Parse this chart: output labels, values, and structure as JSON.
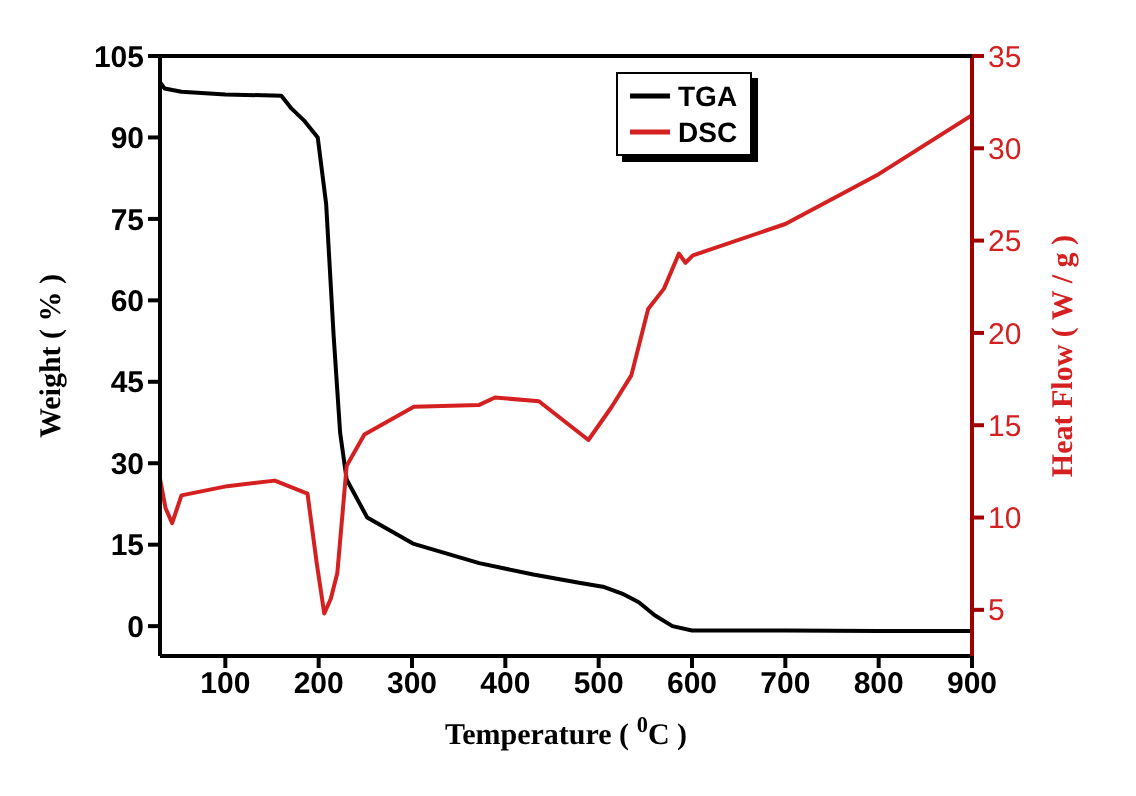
{
  "chart_data": {
    "type": "line",
    "xlabel": "Temperature ( $^{0}$C )",
    "ylabel": "Weight ( % )",
    "y2label": "Heat Flow ( W / g )",
    "xlim": [
      30,
      900
    ],
    "xticks": [
      100,
      200,
      300,
      400,
      500,
      600,
      700,
      800,
      900
    ],
    "ylim": [
      -5.5,
      105
    ],
    "yticks": [
      0,
      15,
      30,
      45,
      60,
      75,
      90,
      105
    ],
    "y2lim": [
      2.5,
      35
    ],
    "y2ticks": [
      5,
      10,
      15,
      20,
      25,
      30,
      35
    ],
    "grid": false,
    "legend": "top",
    "marker": "none",
    "line_style": "solid",
    "series": [
      {
        "name": "TGA",
        "color": "#000000",
        "x": [
          30,
          35,
          53,
          100,
          160,
          171,
          185,
          199,
          208,
          216,
          223,
          230,
          252,
          301,
          372,
          430,
          479,
          506,
          525,
          543,
          560,
          579,
          600,
          700,
          800,
          900
        ],
        "values": [
          100.2,
          99,
          98.4,
          97.9,
          97.7,
          95.3,
          93,
          90,
          77.8,
          53.6,
          35.6,
          27,
          20,
          15.2,
          11.6,
          9.5,
          8,
          7.2,
          6,
          4.4,
          2,
          0,
          -0.8,
          -0.8,
          -0.9,
          -0.9
        ]
      },
      {
        "name": "DSC",
        "color": "#d42020",
        "axis": "y2",
        "x": [
          30,
          36,
          43,
          53,
          102,
          153,
          188,
          198,
          206,
          213,
          220,
          230,
          249,
          302,
          372,
          389,
          436,
          489,
          514,
          535,
          553,
          570,
          586,
          593,
          601,
          700,
          800,
          900
        ],
        "values": [
          12.1,
          10.5,
          9.7,
          11.2,
          11.7,
          12.0,
          11.3,
          7.5,
          4.8,
          5.6,
          7,
          12.8,
          14.5,
          16,
          16.1,
          16.5,
          16.3,
          14.2,
          16,
          17.7,
          21.3,
          22.4,
          24.3,
          23.8,
          24.2,
          25.9,
          28.6,
          31.8
        ]
      }
    ]
  }
}
